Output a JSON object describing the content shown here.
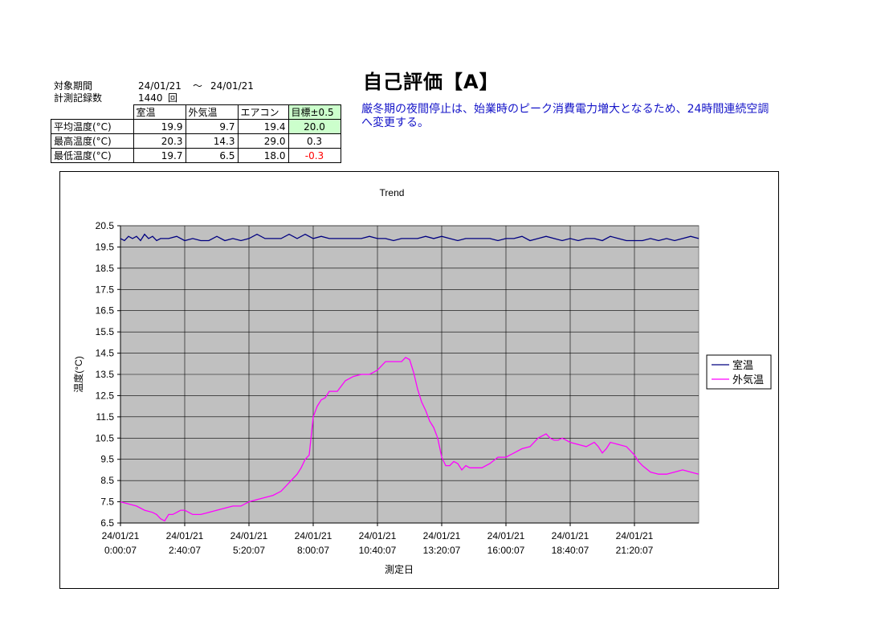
{
  "header": {
    "period_label": "対象期間",
    "period_from": "24/01/21",
    "period_sep": "～",
    "period_to": "24/01/21",
    "records_label": "計測記録数",
    "records_value": "1440",
    "records_unit": "回"
  },
  "title": "自己評価【A】",
  "comment": "厳冬期の夜間停止は、始業時のピーク消費電力増大となるため、24時間連続空調へ変更する。",
  "stats_table": {
    "columns": [
      "室温",
      "外気温",
      "エアコン",
      "目標±0.5"
    ],
    "rows": [
      {
        "label": "平均温度(°C)",
        "room": "19.9",
        "outside": "9.7",
        "aircon": "19.4",
        "target": "20.0"
      },
      {
        "label": "最高温度(°C)",
        "room": "20.3",
        "outside": "14.3",
        "aircon": "29.0",
        "target": "0.3"
      },
      {
        "label": "最低温度(°C)",
        "room": "19.7",
        "outside": "6.5",
        "aircon": "18.0",
        "target": "-0.3"
      }
    ],
    "colors": {
      "target_highlight": "#ccffcc",
      "negative": "#ff0000"
    }
  },
  "chart_data": {
    "type": "line",
    "title": "Trend",
    "xlabel": "測定日",
    "ylabel": "温度(°C)",
    "ylim": [
      6.5,
      20.5
    ],
    "yticks": [
      6.5,
      7.5,
      8.5,
      9.5,
      10.5,
      11.5,
      12.5,
      13.5,
      14.5,
      15.5,
      16.5,
      17.5,
      18.5,
      19.5,
      20.5
    ],
    "xlim": [
      0,
      1440
    ],
    "xticks": [
      {
        "x": 0,
        "date": "24/01/21",
        "time": "0:00:07"
      },
      {
        "x": 160,
        "date": "24/01/21",
        "time": "2:40:07"
      },
      {
        "x": 320,
        "date": "24/01/21",
        "time": "5:20:07"
      },
      {
        "x": 480,
        "date": "24/01/21",
        "time": "8:00:07"
      },
      {
        "x": 640,
        "date": "24/01/21",
        "time": "10:40:07"
      },
      {
        "x": 800,
        "date": "24/01/21",
        "time": "13:20:07"
      },
      {
        "x": 960,
        "date": "24/01/21",
        "time": "16:00:07"
      },
      {
        "x": 1120,
        "date": "24/01/21",
        "time": "18:40:07"
      },
      {
        "x": 1280,
        "date": "24/01/21",
        "time": "21:20:07"
      }
    ],
    "grid": true,
    "legend_position": "right",
    "plot_background": "#c0c0c0",
    "series": [
      {
        "name": "室温",
        "color": "#000080",
        "x": [
          0,
          10,
          20,
          30,
          40,
          50,
          60,
          70,
          80,
          90,
          100,
          120,
          140,
          160,
          180,
          200,
          220,
          240,
          260,
          280,
          300,
          320,
          340,
          360,
          380,
          400,
          420,
          440,
          460,
          480,
          500,
          520,
          540,
          560,
          580,
          600,
          620,
          640,
          660,
          680,
          700,
          720,
          740,
          760,
          780,
          800,
          820,
          840,
          860,
          880,
          900,
          920,
          940,
          960,
          980,
          1000,
          1020,
          1040,
          1060,
          1080,
          1100,
          1120,
          1140,
          1160,
          1180,
          1200,
          1220,
          1240,
          1260,
          1280,
          1300,
          1320,
          1340,
          1360,
          1380,
          1400,
          1420,
          1440
        ],
        "y": [
          19.9,
          19.8,
          20.0,
          19.9,
          20.0,
          19.8,
          20.1,
          19.9,
          20.0,
          19.8,
          19.9,
          19.9,
          20.0,
          19.8,
          19.9,
          19.8,
          19.8,
          20.0,
          19.8,
          19.9,
          19.8,
          19.9,
          20.1,
          19.9,
          19.9,
          19.9,
          20.1,
          19.9,
          20.1,
          19.9,
          20.0,
          19.9,
          19.9,
          19.9,
          19.9,
          19.9,
          20.0,
          19.9,
          19.9,
          19.8,
          19.9,
          19.9,
          19.9,
          20.0,
          19.9,
          20.0,
          19.9,
          19.8,
          19.9,
          19.9,
          19.9,
          19.9,
          19.8,
          19.9,
          19.9,
          20.0,
          19.8,
          19.9,
          20.0,
          19.9,
          19.8,
          19.9,
          19.8,
          19.9,
          19.9,
          19.8,
          20.0,
          19.9,
          19.8,
          19.8,
          19.8,
          19.9,
          19.8,
          19.9,
          19.8,
          19.9,
          20.0,
          19.9
        ]
      },
      {
        "name": "外気温",
        "color": "#ff00ff",
        "x": [
          0,
          20,
          40,
          60,
          80,
          90,
          100,
          110,
          120,
          130,
          140,
          150,
          160,
          180,
          200,
          220,
          240,
          260,
          280,
          300,
          320,
          340,
          360,
          380,
          400,
          420,
          430,
          440,
          450,
          460,
          470,
          480,
          490,
          500,
          510,
          520,
          530,
          540,
          560,
          580,
          600,
          610,
          620,
          630,
          640,
          660,
          680,
          690,
          700,
          710,
          720,
          730,
          740,
          750,
          760,
          770,
          780,
          790,
          800,
          810,
          820,
          830,
          840,
          850,
          860,
          870,
          880,
          900,
          920,
          940,
          960,
          980,
          1000,
          1020,
          1040,
          1060,
          1070,
          1080,
          1090,
          1100,
          1110,
          1120,
          1140,
          1160,
          1180,
          1190,
          1200,
          1210,
          1220,
          1240,
          1260,
          1270,
          1280,
          1290,
          1300,
          1320,
          1340,
          1360,
          1380,
          1400,
          1420,
          1440
        ],
        "y": [
          7.5,
          7.4,
          7.3,
          7.1,
          7.0,
          6.9,
          6.7,
          6.6,
          6.9,
          6.9,
          7.0,
          7.1,
          7.1,
          6.9,
          6.9,
          7.0,
          7.1,
          7.2,
          7.3,
          7.3,
          7.5,
          7.6,
          7.7,
          7.8,
          8.0,
          8.4,
          8.6,
          8.8,
          9.1,
          9.5,
          9.7,
          11.5,
          12.0,
          12.3,
          12.4,
          12.7,
          12.7,
          12.7,
          13.2,
          13.4,
          13.5,
          13.5,
          13.5,
          13.6,
          13.7,
          14.1,
          14.1,
          14.1,
          14.1,
          14.3,
          14.2,
          13.6,
          12.8,
          12.2,
          11.8,
          11.3,
          11.0,
          10.5,
          9.6,
          9.2,
          9.2,
          9.4,
          9.3,
          9.0,
          9.2,
          9.1,
          9.1,
          9.1,
          9.3,
          9.6,
          9.6,
          9.8,
          10.0,
          10.1,
          10.5,
          10.7,
          10.5,
          10.4,
          10.4,
          10.5,
          10.4,
          10.3,
          10.2,
          10.1,
          10.3,
          10.1,
          9.8,
          10.0,
          10.3,
          10.2,
          10.1,
          9.9,
          9.7,
          9.4,
          9.2,
          8.9,
          8.8,
          8.8,
          8.9,
          9.0,
          8.9,
          8.8
        ]
      }
    ]
  }
}
